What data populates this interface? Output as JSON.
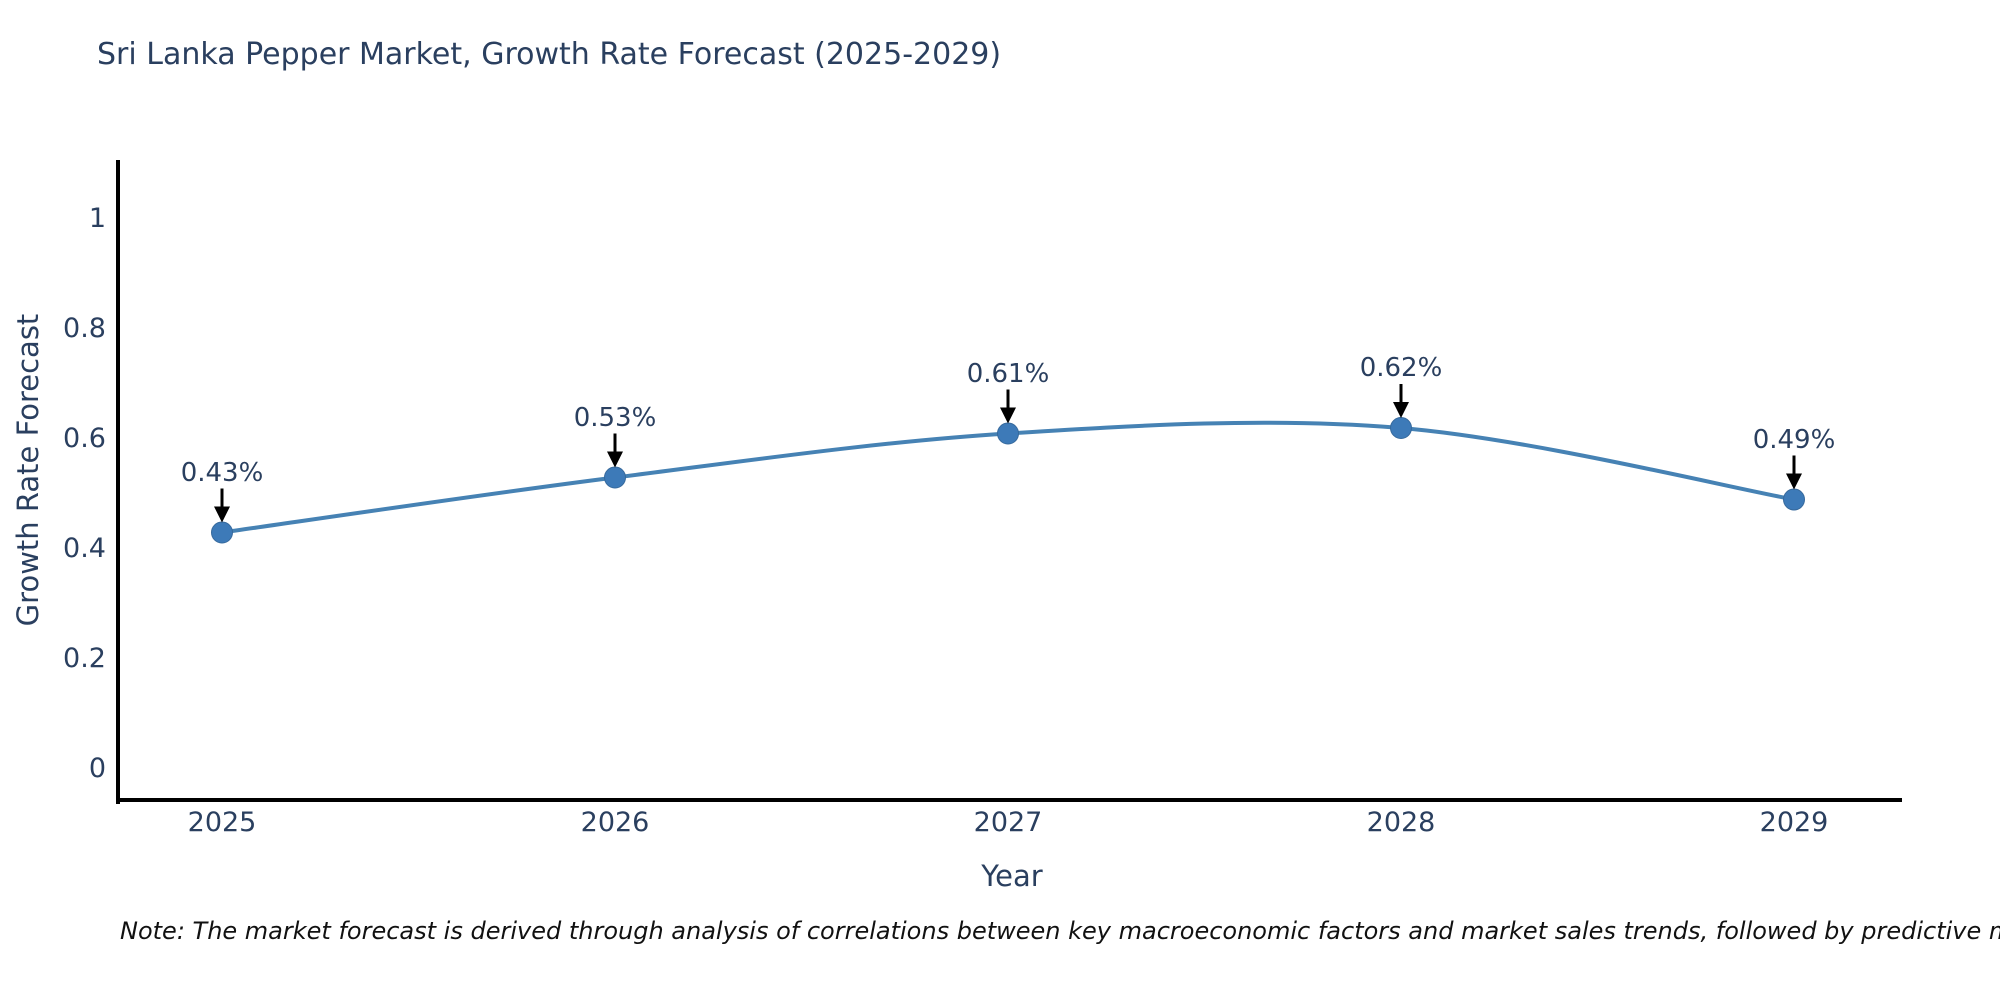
{
  "page": {
    "background": "#ffffff"
  },
  "title": {
    "text": "Sri Lanka Pepper Market, Growth Rate Forecast (2025-2029)"
  },
  "note": {
    "text": "Note: The market forecast is derived through analysis of correlations between key macroeconomic factors and market sales trends, followed by predictive modeling to project future sales"
  },
  "chart_data": {
    "type": "line",
    "title": "Sri Lanka Pepper Market, Growth Rate Forecast (2025-2029)",
    "xlabel": "Year",
    "ylabel": "Growth Rate Forecast",
    "categories": [
      "2025",
      "2026",
      "2027",
      "2028",
      "2029"
    ],
    "series": [
      {
        "name": "Growth Rate Forecast",
        "values": [
          0.43,
          0.53,
          0.61,
          0.62,
          0.49
        ]
      }
    ],
    "points": [
      {
        "category": "2025",
        "value": 0.43,
        "label": "0.43%"
      },
      {
        "category": "2026",
        "value": 0.53,
        "label": "0.53%"
      },
      {
        "category": "2027",
        "value": 0.61,
        "label": "0.61%"
      },
      {
        "category": "2028",
        "value": 0.62,
        "label": "0.62%"
      },
      {
        "category": "2029",
        "value": 0.49,
        "label": "0.49%"
      }
    ],
    "yticks": [
      {
        "label": "0",
        "value": 0
      },
      {
        "label": "0.2",
        "value": 0.2
      },
      {
        "label": "0.4",
        "value": 0.4
      },
      {
        "label": "0.6",
        "value": 0.6
      },
      {
        "label": "0.8",
        "value": 0.8
      },
      {
        "label": "1",
        "value": 1
      }
    ],
    "ylim": [
      -0.06,
      1.11
    ],
    "grid": false,
    "legend": "none",
    "line_shape": "spline",
    "annotation_arrows": "down",
    "colors": {
      "line": "#4682b4",
      "marker": "#3d7ab8",
      "marker_edge": "#36699c",
      "axis": "#000000",
      "tick_text": "#2a3f5f",
      "annotation_text": "#2a3f5f",
      "arrow": "#000000",
      "note_text": "#111111"
    }
  }
}
